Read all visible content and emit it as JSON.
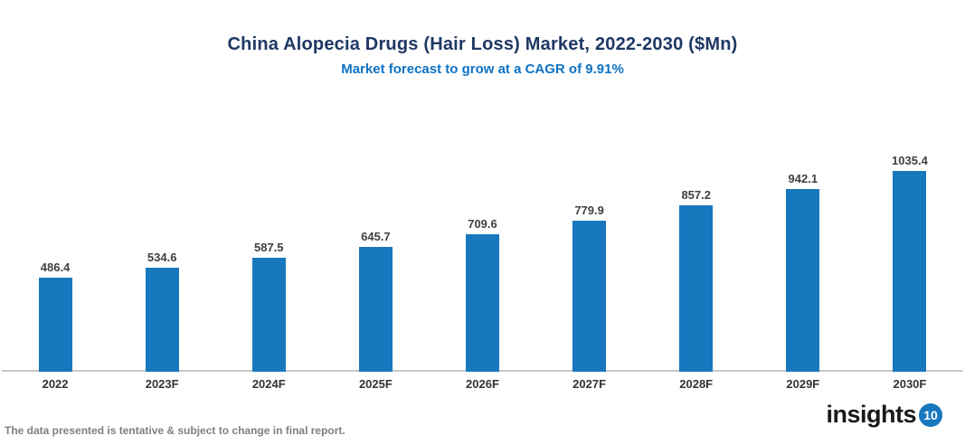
{
  "header": {
    "title": "China Alopecia Drugs (Hair Loss) Market, 2022-2030 ($Mn)",
    "subtitle": "Market forecast to grow at a CAGR of 9.91%"
  },
  "chart_data": {
    "type": "bar",
    "title": "China Alopecia Drugs (Hair Loss) Market, 2022-2030 ($Mn)",
    "subtitle": "Market forecast to grow at a CAGR of 9.91%",
    "categories": [
      "2022",
      "2023F",
      "2024F",
      "2025F",
      "2026F",
      "2027F",
      "2028F",
      "2029F",
      "2030F"
    ],
    "values": [
      486.4,
      534.6,
      587.5,
      645.7,
      709.6,
      779.9,
      857.2,
      942.1,
      1035.4
    ],
    "xlabel": "",
    "ylabel": "",
    "value_labels_shown": true,
    "grid": false,
    "legend": false,
    "bar_color": "#1878be",
    "axis_line_color": "#c9c9c9"
  },
  "footer": {
    "disclaimer": "The data presented is tentative & subject to change in final report.",
    "logo_text": "insights",
    "logo_badge": "10"
  },
  "colors": {
    "title": "#1f3864",
    "subtitle": "#0d72c4",
    "bar": "#1878be",
    "value_label": "#3f3f3f",
    "brand_badge": "#1878be"
  }
}
